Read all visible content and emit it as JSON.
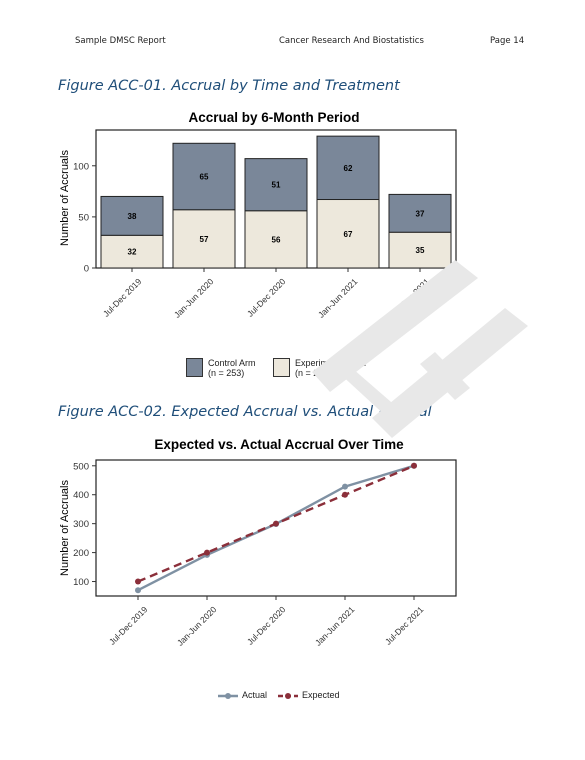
{
  "header": {
    "left": "Sample DMSC Report",
    "center": "Cancer Research And Biostatistics",
    "right": "Page 14"
  },
  "figure1": {
    "heading": "Figure ACC-01. Accrual by Time and Treatment",
    "chart_title": "Accrual by 6-Month Period",
    "ylabel": "Number of Accruals"
  },
  "figure2": {
    "heading": "Figure ACC-02. Expected Accrual vs. Actual Accrual",
    "chart_title": "Expected vs. Actual Accrual Over Time",
    "ylabel": "Number of Accruals"
  },
  "legend1": {
    "control_label": "Control Arm",
    "control_n": "(n = 253)",
    "experimental_label": "Experimental Arm",
    "experimental_n": "(n = 247)"
  },
  "legend2": {
    "actual_label": "Actual",
    "expected_label": "Expected"
  },
  "colors": {
    "control": "#7a8799",
    "experimental": "#ede8dc",
    "actual": "#7f91a3",
    "expected": "#8b2f3a",
    "heading": "#1f4e79"
  },
  "chart_data": [
    {
      "type": "bar",
      "stacked": true,
      "title": "Accrual by 6-Month Period",
      "xlabel": "",
      "ylabel": "Number of Accruals",
      "categories": [
        "Jul-Dec 2019",
        "Jan-Jun 2020",
        "Jul-Dec 2020",
        "Jan-Jun 2021",
        "Jul-Dec 2021"
      ],
      "series": [
        {
          "name": "Experimental Arm",
          "values": [
            32,
            57,
            56,
            67,
            35
          ]
        },
        {
          "name": "Control Arm",
          "values": [
            38,
            65,
            51,
            62,
            37
          ]
        }
      ],
      "ylim": [
        0,
        135
      ],
      "yticks": [
        0,
        50,
        100
      ],
      "legend": "bottom"
    },
    {
      "type": "line",
      "title": "Expected vs. Actual Accrual Over Time",
      "xlabel": "",
      "ylabel": "Number of Accruals",
      "categories": [
        "Jul-Dec 2019",
        "Jan-Jun 2020",
        "Jul-Dec 2020",
        "Jan-Jun 2021",
        "Jul-Dec 2021"
      ],
      "series": [
        {
          "name": "Actual",
          "values": [
            70,
            192,
            299,
            428,
            500
          ]
        },
        {
          "name": "Expected",
          "values": [
            100,
            200,
            300,
            400,
            500
          ]
        }
      ],
      "ylim": [
        50,
        520
      ],
      "yticks": [
        100,
        200,
        300,
        400,
        500
      ],
      "legend": "bottom"
    }
  ]
}
